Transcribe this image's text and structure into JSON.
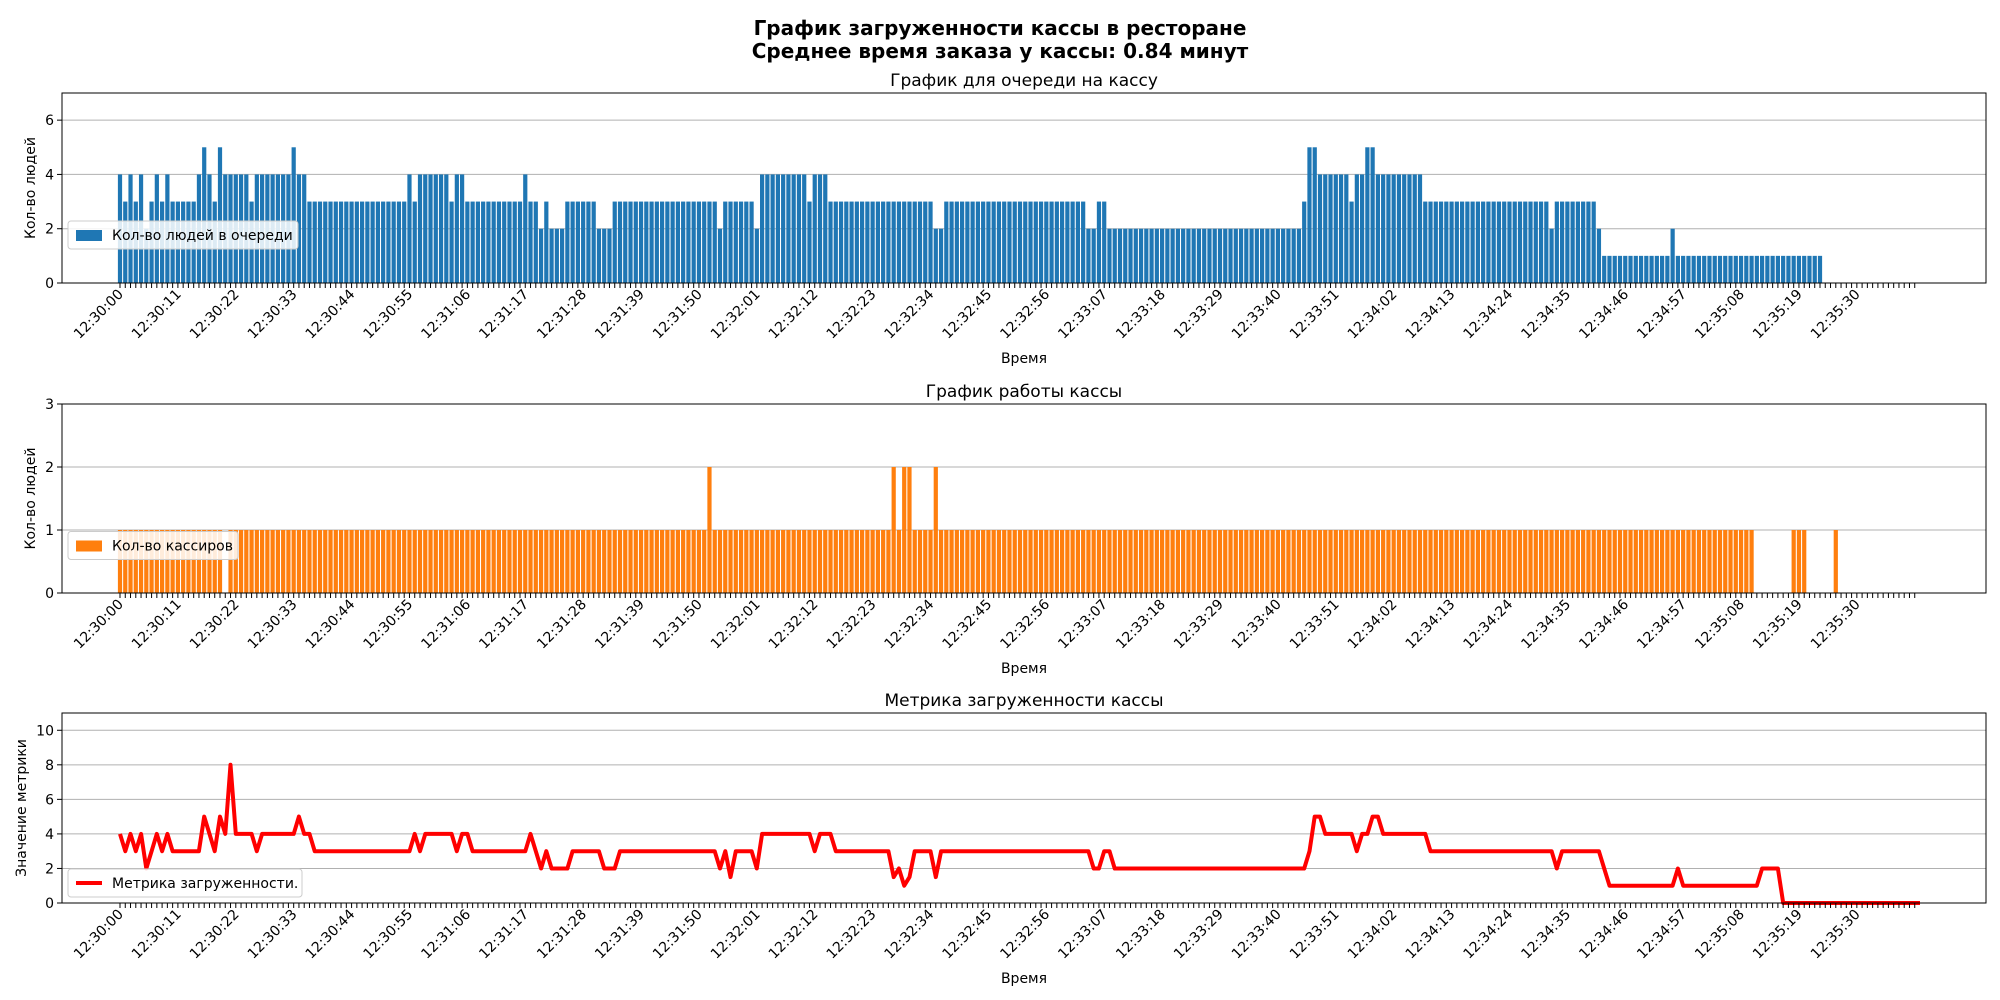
{
  "figure": {
    "title_line1": "График загруженности кассы в ресторане",
    "title_line2": "Среднее время заказа у кассы: 0.84 минут"
  },
  "x_axis": {
    "start_time": "12:30:00",
    "tick_labels": [
      "12:30:00",
      "12:30:11",
      "12:30:22",
      "12:30:33",
      "12:30:44",
      "12:30:55",
      "12:31:06",
      "12:31:17",
      "12:31:28",
      "12:31:39",
      "12:31:50",
      "12:32:01",
      "12:32:12",
      "12:32:23",
      "12:32:34",
      "12:32:45",
      "12:32:56",
      "12:33:07",
      "12:33:18",
      "12:33:29",
      "12:33:40",
      "12:33:51",
      "12:34:02",
      "12:34:13",
      "12:34:24",
      "12:34:35",
      "12:34:46",
      "12:34:57",
      "12:35:08",
      "12:35:19",
      "12:35:30"
    ],
    "tick_step_seconds": 11,
    "minor_step_seconds": 1
  },
  "chart_data": [
    {
      "type": "bar",
      "title": "График для очереди на кассу",
      "xlabel": "Время",
      "ylabel": "Кол-во людей",
      "ylim": [
        0,
        7
      ],
      "yticks": [
        0,
        2,
        4,
        6
      ],
      "grid": "y",
      "legend_position": "center-left",
      "color": "#1f77b4",
      "series": [
        {
          "name": "Кол-во людей в очереди",
          "segments": [
            [
              0,
              1,
              4
            ],
            [
              1,
              2,
              3
            ],
            [
              2,
              3,
              4
            ],
            [
              3,
              4,
              3
            ],
            [
              4,
              5,
              4
            ],
            [
              5,
              6,
              2
            ],
            [
              6,
              7,
              3
            ],
            [
              7,
              8,
              4
            ],
            [
              8,
              9,
              3
            ],
            [
              9,
              10,
              4
            ],
            [
              10,
              15,
              3
            ],
            [
              15,
              16,
              4
            ],
            [
              16,
              17,
              5
            ],
            [
              17,
              18,
              4
            ],
            [
              18,
              19,
              3
            ],
            [
              19,
              20,
              5
            ],
            [
              20,
              25,
              4
            ],
            [
              25,
              26,
              3
            ],
            [
              26,
              33,
              4
            ],
            [
              33,
              34,
              5
            ],
            [
              34,
              36,
              4
            ],
            [
              36,
              55,
              3
            ],
            [
              55,
              56,
              4
            ],
            [
              56,
              57,
              3
            ],
            [
              57,
              63,
              4
            ],
            [
              63,
              64,
              3
            ],
            [
              64,
              66,
              4
            ],
            [
              66,
              77,
              3
            ],
            [
              77,
              78,
              4
            ],
            [
              78,
              80,
              3
            ],
            [
              80,
              81,
              2
            ],
            [
              81,
              82,
              3
            ],
            [
              82,
              85,
              2
            ],
            [
              85,
              91,
              3
            ],
            [
              91,
              94,
              2
            ],
            [
              94,
              114,
              3
            ],
            [
              114,
              115,
              2
            ],
            [
              115,
              121,
              3
            ],
            [
              121,
              122,
              2
            ],
            [
              122,
              131,
              4
            ],
            [
              131,
              132,
              3
            ],
            [
              132,
              135,
              4
            ],
            [
              135,
              155,
              3
            ],
            [
              155,
              157,
              2
            ],
            [
              157,
              184,
              3
            ],
            [
              184,
              186,
              2
            ],
            [
              186,
              188,
              3
            ],
            [
              188,
              225,
              2
            ],
            [
              225,
              226,
              3
            ],
            [
              226,
              228,
              5
            ],
            [
              228,
              234,
              4
            ],
            [
              234,
              235,
              3
            ],
            [
              235,
              237,
              4
            ],
            [
              237,
              239,
              5
            ],
            [
              239,
              248,
              4
            ],
            [
              248,
              272,
              3
            ],
            [
              272,
              273,
              2
            ],
            [
              273,
              276,
              3
            ],
            [
              276,
              281,
              3
            ],
            [
              281,
              282,
              2
            ],
            [
              282,
              295,
              1
            ],
            [
              295,
              296,
              2
            ],
            [
              296,
              324,
              1
            ],
            [
              324,
              342,
              0
            ]
          ]
        }
      ]
    },
    {
      "type": "bar",
      "title": "График работы кассы",
      "xlabel": "Время",
      "ylabel": "Кол-во людей",
      "ylim": [
        0,
        3
      ],
      "yticks": [
        0,
        1,
        2,
        3
      ],
      "grid": "y",
      "legend_position": "center-left",
      "color": "#ff7f0e",
      "series": [
        {
          "name": "Кол-во кассиров",
          "segments": [
            [
              0,
              20,
              1
            ],
            [
              20,
              21,
              0
            ],
            [
              21,
              112,
              1
            ],
            [
              112,
              113,
              2
            ],
            [
              113,
              147,
              1
            ],
            [
              147,
              148,
              2
            ],
            [
              148,
              149,
              1
            ],
            [
              149,
              151,
              2
            ],
            [
              151,
              155,
              1
            ],
            [
              155,
              156,
              2
            ],
            [
              156,
              311,
              1
            ],
            [
              311,
              318,
              0
            ],
            [
              318,
              321,
              1
            ],
            [
              321,
              326,
              0
            ],
            [
              326,
              327,
              1
            ],
            [
              327,
              342,
              0
            ]
          ]
        }
      ]
    },
    {
      "type": "line",
      "title": "Метрика загруженности кассы",
      "xlabel": "Время",
      "ylabel": "Значение метрики",
      "ylim": [
        0,
        11
      ],
      "yticks": [
        0,
        2,
        4,
        6,
        8,
        10
      ],
      "grid": "y",
      "legend_position": "lower-left",
      "color": "#ff0000",
      "series": [
        {
          "name": "Метрика загруженности.",
          "points": [
            [
              0,
              4
            ],
            [
              1,
              3
            ],
            [
              2,
              4
            ],
            [
              3,
              3
            ],
            [
              4,
              4
            ],
            [
              5,
              2
            ],
            [
              6,
              3
            ],
            [
              7,
              4
            ],
            [
              8,
              3
            ],
            [
              9,
              4
            ],
            [
              10,
              3
            ],
            [
              15,
              3
            ],
            [
              16,
              5
            ],
            [
              17,
              4
            ],
            [
              18,
              3
            ],
            [
              19,
              5
            ],
            [
              20,
              4
            ],
            [
              21,
              8
            ],
            [
              22,
              4
            ],
            [
              25,
              4
            ],
            [
              26,
              3
            ],
            [
              27,
              4
            ],
            [
              33,
              4
            ],
            [
              34,
              5
            ],
            [
              35,
              4
            ],
            [
              36,
              4
            ],
            [
              37,
              3
            ],
            [
              55,
              3
            ],
            [
              56,
              4
            ],
            [
              57,
              3
            ],
            [
              58,
              4
            ],
            [
              63,
              4
            ],
            [
              64,
              3
            ],
            [
              65,
              4
            ],
            [
              66,
              4
            ],
            [
              67,
              3
            ],
            [
              77,
              3
            ],
            [
              78,
              4
            ],
            [
              79,
              3
            ],
            [
              80,
              2
            ],
            [
              81,
              3
            ],
            [
              82,
              2
            ],
            [
              85,
              2
            ],
            [
              86,
              3
            ],
            [
              91,
              3
            ],
            [
              92,
              2
            ],
            [
              94,
              2
            ],
            [
              95,
              3
            ],
            [
              113,
              3
            ],
            [
              114,
              2
            ],
            [
              115,
              3
            ],
            [
              116,
              1.5
            ],
            [
              117,
              3
            ],
            [
              120,
              3
            ],
            [
              121,
              2
            ],
            [
              122,
              4
            ],
            [
              131,
              4
            ],
            [
              132,
              3
            ],
            [
              133,
              4
            ],
            [
              135,
              4
            ],
            [
              136,
              3
            ],
            [
              146,
              3
            ],
            [
              147,
              1.5
            ],
            [
              148,
              2
            ],
            [
              149,
              1
            ],
            [
              150,
              1.5
            ],
            [
              151,
              3
            ],
            [
              154,
              3
            ],
            [
              155,
              1.5
            ],
            [
              156,
              3
            ],
            [
              184,
              3
            ],
            [
              185,
              2
            ],
            [
              186,
              2
            ],
            [
              187,
              3
            ],
            [
              188,
              3
            ],
            [
              189,
              2
            ],
            [
              225,
              2
            ],
            [
              226,
              3
            ],
            [
              227,
              5
            ],
            [
              228,
              5
            ],
            [
              229,
              4
            ],
            [
              234,
              4
            ],
            [
              235,
              3
            ],
            [
              236,
              4
            ],
            [
              237,
              4
            ],
            [
              238,
              5
            ],
            [
              239,
              5
            ],
            [
              240,
              4
            ],
            [
              248,
              4
            ],
            [
              249,
              3
            ],
            [
              272,
              3
            ],
            [
              273,
              2
            ],
            [
              274,
              3
            ],
            [
              281,
              3
            ],
            [
              282,
              2
            ],
            [
              283,
              1
            ],
            [
              295,
              1
            ],
            [
              296,
              2
            ],
            [
              297,
              1
            ],
            [
              311,
              1
            ],
            [
              312,
              2
            ],
            [
              315,
              2
            ],
            [
              316,
              0
            ],
            [
              342,
              0
            ]
          ]
        }
      ]
    }
  ]
}
